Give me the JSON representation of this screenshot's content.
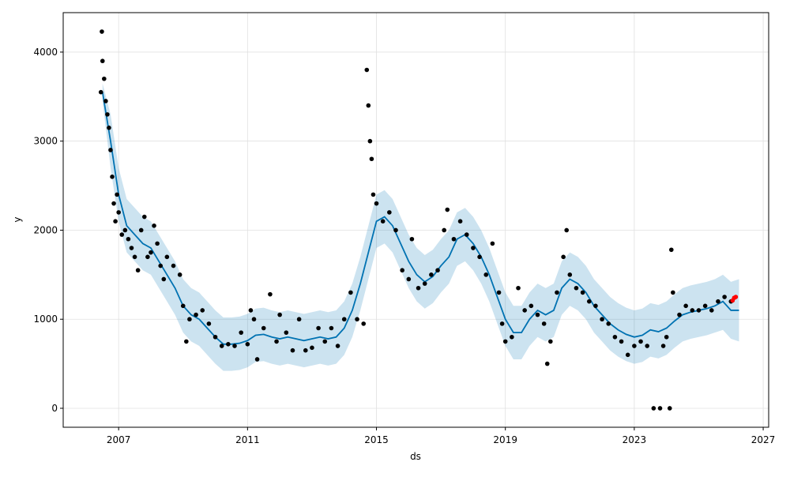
{
  "chart_data": {
    "type": "forecast",
    "x_label": "ds",
    "y_label": "y",
    "xlim": [
      2005.28,
      2027.17
    ],
    "ylim": [
      -213,
      4443
    ],
    "xticks": [
      2007,
      2011,
      2015,
      2019,
      2023,
      2027
    ],
    "yticks": [
      0,
      1000,
      2000,
      3000,
      4000
    ],
    "grid": true,
    "series": [
      {
        "type": "band",
        "color": "#0072B2",
        "opacity": 0.2,
        "x": [
          2006.5,
          2006.75,
          2007.0,
          2007.25,
          2007.5,
          2007.75,
          2008.0,
          2008.25,
          2008.5,
          2008.75,
          2009.0,
          2009.25,
          2009.5,
          2009.75,
          2010.0,
          2010.25,
          2010.5,
          2010.75,
          2011.0,
          2011.25,
          2011.5,
          2011.75,
          2012.0,
          2012.25,
          2012.5,
          2012.75,
          2013.0,
          2013.25,
          2013.5,
          2013.75,
          2014.0,
          2014.25,
          2014.5,
          2014.75,
          2015.0,
          2015.25,
          2015.5,
          2015.75,
          2016.0,
          2016.25,
          2016.5,
          2016.75,
          2017.0,
          2017.25,
          2017.5,
          2017.75,
          2018.0,
          2018.25,
          2018.5,
          2018.75,
          2019.0,
          2019.25,
          2019.5,
          2019.75,
          2020.0,
          2020.25,
          2020.5,
          2020.75,
          2021.0,
          2021.25,
          2021.5,
          2021.75,
          2022.0,
          2022.25,
          2022.5,
          2022.75,
          2023.0,
          2023.25,
          2023.5,
          2023.75,
          2024.0,
          2024.25,
          2024.5,
          2024.75,
          2025.0,
          2025.25,
          2025.5,
          2025.75,
          2026.0,
          2026.25
        ],
        "upper": [
          3650,
          3300,
          2700,
          2350,
          2250,
          2150,
          2100,
          1950,
          1800,
          1650,
          1450,
          1350,
          1300,
          1200,
          1100,
          1020,
          1020,
          1030,
          1060,
          1120,
          1130,
          1100,
          1080,
          1100,
          1080,
          1060,
          1080,
          1100,
          1080,
          1100,
          1200,
          1400,
          1700,
          2050,
          2400,
          2450,
          2350,
          2150,
          1950,
          1800,
          1720,
          1780,
          1900,
          2000,
          2200,
          2250,
          2150,
          2000,
          1800,
          1550,
          1300,
          1150,
          1150,
          1300,
          1400,
          1350,
          1400,
          1650,
          1750,
          1700,
          1600,
          1450,
          1350,
          1250,
          1180,
          1130,
          1100,
          1120,
          1180,
          1160,
          1200,
          1280,
          1350,
          1380,
          1400,
          1420,
          1450,
          1500,
          1420,
          1450
        ],
        "lower": [
          3450,
          2700,
          2100,
          1750,
          1650,
          1550,
          1500,
          1350,
          1200,
          1050,
          850,
          750,
          700,
          600,
          500,
          420,
          420,
          430,
          460,
          520,
          530,
          500,
          480,
          500,
          480,
          460,
          480,
          500,
          480,
          500,
          600,
          800,
          1100,
          1450,
          1800,
          1850,
          1750,
          1550,
          1350,
          1200,
          1120,
          1180,
          1300,
          1400,
          1600,
          1650,
          1550,
          1400,
          1200,
          950,
          700,
          550,
          550,
          700,
          800,
          750,
          800,
          1050,
          1150,
          1100,
          1000,
          850,
          750,
          650,
          580,
          530,
          500,
          520,
          580,
          560,
          600,
          680,
          750,
          780,
          800,
          820,
          850,
          880,
          780,
          750
        ]
      },
      {
        "type": "line",
        "color": "#0072B2",
        "x": [
          2006.5,
          2006.75,
          2007.0,
          2007.25,
          2007.5,
          2007.75,
          2008.0,
          2008.25,
          2008.5,
          2008.75,
          2009.0,
          2009.25,
          2009.5,
          2009.75,
          2010.0,
          2010.25,
          2010.5,
          2010.75,
          2011.0,
          2011.25,
          2011.5,
          2011.75,
          2012.0,
          2012.25,
          2012.5,
          2012.75,
          2013.0,
          2013.25,
          2013.5,
          2013.75,
          2014.0,
          2014.25,
          2014.5,
          2014.75,
          2015.0,
          2015.25,
          2015.5,
          2015.75,
          2016.0,
          2016.25,
          2016.5,
          2016.75,
          2017.0,
          2017.25,
          2017.5,
          2017.75,
          2018.0,
          2018.25,
          2018.5,
          2018.75,
          2019.0,
          2019.25,
          2019.5,
          2019.75,
          2020.0,
          2020.25,
          2020.5,
          2020.75,
          2021.0,
          2021.25,
          2021.5,
          2021.75,
          2022.0,
          2022.25,
          2022.5,
          2022.75,
          2023.0,
          2023.25,
          2023.5,
          2023.75,
          2024.0,
          2024.25,
          2024.5,
          2024.75,
          2025.0,
          2025.25,
          2025.5,
          2025.75,
          2026.0,
          2026.25
        ],
        "values": [
          3550,
          3000,
          2400,
          2050,
          1950,
          1850,
          1800,
          1650,
          1500,
          1350,
          1150,
          1050,
          1000,
          900,
          800,
          720,
          720,
          730,
          760,
          820,
          830,
          800,
          780,
          800,
          780,
          760,
          780,
          800,
          780,
          800,
          900,
          1100,
          1400,
          1750,
          2100,
          2150,
          2050,
          1850,
          1650,
          1500,
          1420,
          1480,
          1600,
          1700,
          1900,
          1950,
          1850,
          1700,
          1500,
          1250,
          1000,
          850,
          850,
          1000,
          1100,
          1050,
          1100,
          1350,
          1450,
          1400,
          1300,
          1150,
          1050,
          950,
          880,
          830,
          800,
          820,
          880,
          860,
          900,
          980,
          1050,
          1080,
          1100,
          1120,
          1150,
          1200,
          1100,
          1100
        ]
      },
      {
        "type": "scatter",
        "color": "#000000",
        "x": [
          2006.45,
          2006.48,
          2006.5,
          2006.55,
          2006.6,
          2006.65,
          2006.7,
          2006.75,
          2006.8,
          2006.85,
          2006.9,
          2006.95,
          2007.0,
          2007.1,
          2007.2,
          2007.3,
          2007.4,
          2007.5,
          2007.6,
          2007.7,
          2007.8,
          2007.9,
          2008.0,
          2008.1,
          2008.2,
          2008.3,
          2008.4,
          2008.5,
          2008.7,
          2008.9,
          2009.0,
          2009.1,
          2009.2,
          2009.4,
          2009.6,
          2009.8,
          2010.0,
          2010.2,
          2010.4,
          2010.6,
          2010.8,
          2011.0,
          2011.1,
          2011.2,
          2011.3,
          2011.5,
          2011.7,
          2011.9,
          2012.0,
          2012.2,
          2012.4,
          2012.6,
          2012.8,
          2013.0,
          2013.2,
          2013.4,
          2013.6,
          2013.8,
          2014.0,
          2014.2,
          2014.4,
          2014.6,
          2014.7,
          2014.75,
          2014.8,
          2014.85,
          2014.9,
          2015.0,
          2015.2,
          2015.4,
          2015.6,
          2015.8,
          2016.0,
          2016.1,
          2016.3,
          2016.5,
          2016.7,
          2016.9,
          2017.1,
          2017.2,
          2017.4,
          2017.6,
          2017.8,
          2018.0,
          2018.2,
          2018.4,
          2018.6,
          2018.8,
          2018.9,
          2019.0,
          2019.2,
          2019.4,
          2019.6,
          2019.8,
          2020.0,
          2020.2,
          2020.3,
          2020.4,
          2020.6,
          2020.8,
          2020.9,
          2021.0,
          2021.2,
          2021.4,
          2021.6,
          2021.8,
          2022.0,
          2022.2,
          2022.4,
          2022.6,
          2022.8,
          2023.0,
          2023.2,
          2023.4,
          2023.6,
          2023.8,
          2023.9,
          2024.0,
          2024.1,
          2024.15,
          2024.2,
          2024.4,
          2024.6,
          2024.8,
          2025.0,
          2025.2,
          2025.4,
          2025.6,
          2025.8,
          2026.0
        ],
        "values": [
          3550,
          4230,
          3900,
          3700,
          3450,
          3300,
          3150,
          2900,
          2600,
          2300,
          2100,
          2400,
          2200,
          1950,
          2000,
          1900,
          1800,
          1700,
          1550,
          2000,
          2150,
          1700,
          1750,
          2050,
          1850,
          1600,
          1450,
          1700,
          1600,
          1500,
          1150,
          750,
          1000,
          1050,
          1100,
          950,
          800,
          700,
          720,
          700,
          850,
          720,
          1100,
          1000,
          550,
          900,
          1280,
          750,
          1050,
          850,
          650,
          1000,
          650,
          680,
          900,
          750,
          900,
          700,
          1000,
          1300,
          1000,
          950,
          3800,
          3400,
          3000,
          2800,
          2400,
          2300,
          2100,
          2200,
          2000,
          1550,
          1450,
          1900,
          1350,
          1400,
          1500,
          1550,
          2000,
          2230,
          1900,
          2100,
          1950,
          1800,
          1700,
          1500,
          1850,
          1300,
          950,
          750,
          800,
          1350,
          1100,
          1150,
          1050,
          950,
          500,
          750,
          1300,
          1700,
          2000,
          1500,
          1350,
          1300,
          1200,
          1150,
          1000,
          950,
          800,
          750,
          600,
          700,
          750,
          700,
          0,
          0,
          700,
          800,
          0,
          1780,
          1300,
          1050,
          1150,
          1100,
          1100,
          1150,
          1100,
          1200,
          1250,
          1200
        ]
      },
      {
        "type": "scatter",
        "color": "#ff0000",
        "x": [
          2026.05,
          2026.1,
          2026.15
        ],
        "values": [
          1210,
          1240,
          1250
        ]
      }
    ]
  }
}
